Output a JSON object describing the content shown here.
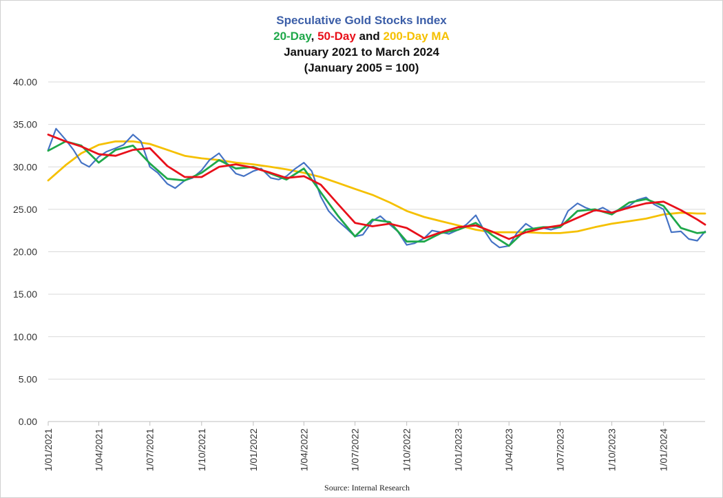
{
  "chart_data": {
    "type": "line",
    "title": "Speculative Gold Stocks Index",
    "subtitle_parts": {
      "ma20": "20-Day",
      "sep1": ", ",
      "ma50": "50-Day",
      "and": " and ",
      "ma200": "200-Day MA"
    },
    "date_range": "January 2021 to March 2024",
    "base_note": "(January 2005 = 100)",
    "source": "Source: Internal Research",
    "xlabel": "",
    "ylabel": "",
    "ylim": [
      0,
      40
    ],
    "yticks": [
      "0.00",
      "5.00",
      "10.00",
      "15.00",
      "20.00",
      "25.00",
      "30.00",
      "35.00",
      "40.00"
    ],
    "xlim": [
      "2021-01-01",
      "2024-03-15"
    ],
    "xticks": [
      "1/01/2021",
      "1/04/2021",
      "1/07/2021",
      "1/10/2021",
      "1/01/2022",
      "1/04/2022",
      "1/07/2022",
      "1/10/2022",
      "1/01/2023",
      "1/04/2023",
      "1/07/2023",
      "1/10/2023",
      "1/01/2024"
    ],
    "grid": true,
    "legend": "none",
    "colors": {
      "index": "#4472c4",
      "ma20": "#1fa84a",
      "ma50": "#e8101a",
      "ma200": "#f5c000",
      "title_blue": "#3b5ea8",
      "grid": "#d9d9d9"
    },
    "series": [
      {
        "key": "index",
        "x": [
          "2021-01-01",
          "2021-01-15",
          "2021-02-01",
          "2021-02-15",
          "2021-03-01",
          "2021-03-15",
          "2021-04-01",
          "2021-04-15",
          "2021-05-01",
          "2021-05-15",
          "2021-06-01",
          "2021-06-15",
          "2021-07-01",
          "2021-07-15",
          "2021-08-01",
          "2021-08-15",
          "2021-09-01",
          "2021-09-15",
          "2021-10-01",
          "2021-10-15",
          "2021-11-01",
          "2021-11-15",
          "2021-12-01",
          "2021-12-15",
          "2022-01-01",
          "2022-01-15",
          "2022-02-01",
          "2022-02-15",
          "2022-03-01",
          "2022-03-15",
          "2022-04-01",
          "2022-04-15",
          "2022-05-01",
          "2022-05-15",
          "2022-06-01",
          "2022-06-15",
          "2022-07-01",
          "2022-07-15",
          "2022-08-01",
          "2022-08-15",
          "2022-09-01",
          "2022-09-15",
          "2022-10-01",
          "2022-10-15",
          "2022-11-01",
          "2022-11-15",
          "2022-12-01",
          "2022-12-15",
          "2023-01-01",
          "2023-01-15",
          "2023-02-01",
          "2023-02-15",
          "2023-03-01",
          "2023-03-15",
          "2023-04-01",
          "2023-04-15",
          "2023-05-01",
          "2023-05-15",
          "2023-06-01",
          "2023-06-15",
          "2023-07-01",
          "2023-07-15",
          "2023-08-01",
          "2023-08-15",
          "2023-09-01",
          "2023-09-15",
          "2023-10-01",
          "2023-10-15",
          "2023-11-01",
          "2023-11-15",
          "2023-12-01",
          "2023-12-15",
          "2024-01-01",
          "2024-01-15",
          "2024-02-01",
          "2024-02-15",
          "2024-03-01",
          "2024-03-15"
        ],
        "y": [
          32.0,
          34.5,
          33.2,
          32.0,
          30.5,
          30.0,
          31.2,
          31.8,
          32.2,
          32.6,
          33.8,
          33.0,
          30.0,
          29.3,
          28.0,
          27.5,
          28.4,
          28.7,
          29.6,
          30.8,
          31.6,
          30.4,
          29.2,
          28.9,
          29.5,
          29.8,
          28.7,
          28.5,
          28.9,
          29.7,
          30.5,
          29.5,
          26.5,
          24.8,
          23.6,
          22.8,
          21.8,
          22.0,
          23.6,
          24.2,
          23.2,
          22.4,
          20.8,
          21.0,
          21.6,
          22.5,
          22.3,
          22.1,
          22.6,
          23.2,
          24.3,
          22.6,
          21.2,
          20.5,
          20.7,
          22.2,
          23.3,
          22.7,
          22.8,
          22.6,
          22.9,
          24.8,
          25.7,
          25.2,
          24.8,
          25.2,
          24.6,
          25.0,
          25.4,
          26.1,
          26.4,
          25.6,
          25.0,
          22.3,
          22.4,
          21.5,
          21.3,
          22.4
        ]
      },
      {
        "key": "ma20",
        "x": [
          "2021-01-01",
          "2021-02-01",
          "2021-03-01",
          "2021-04-01",
          "2021-05-01",
          "2021-06-01",
          "2021-07-01",
          "2021-08-01",
          "2021-09-01",
          "2021-10-01",
          "2021-11-01",
          "2021-12-01",
          "2022-01-01",
          "2022-02-01",
          "2022-03-01",
          "2022-04-01",
          "2022-05-01",
          "2022-06-01",
          "2022-07-01",
          "2022-08-01",
          "2022-09-01",
          "2022-10-01",
          "2022-11-01",
          "2022-12-01",
          "2023-01-01",
          "2023-02-01",
          "2023-03-01",
          "2023-04-01",
          "2023-05-01",
          "2023-06-01",
          "2023-07-01",
          "2023-08-01",
          "2023-09-01",
          "2023-10-01",
          "2023-11-01",
          "2023-12-01",
          "2024-01-01",
          "2024-02-01",
          "2024-03-01",
          "2024-03-15"
        ],
        "y": [
          31.9,
          33.0,
          32.5,
          30.5,
          32.0,
          32.5,
          30.4,
          28.6,
          28.4,
          29.3,
          30.8,
          29.8,
          30.0,
          29.2,
          28.5,
          29.8,
          27.0,
          24.2,
          21.8,
          23.8,
          23.5,
          21.2,
          21.2,
          22.2,
          22.6,
          23.4,
          22.0,
          20.7,
          22.6,
          22.9,
          22.9,
          24.8,
          25.0,
          24.4,
          25.8,
          26.2,
          25.4,
          22.8,
          22.2,
          22.3
        ]
      },
      {
        "key": "ma50",
        "x": [
          "2021-01-01",
          "2021-02-01",
          "2021-03-01",
          "2021-04-01",
          "2021-05-01",
          "2021-06-01",
          "2021-07-01",
          "2021-08-01",
          "2021-09-01",
          "2021-10-01",
          "2021-11-01",
          "2021-12-01",
          "2022-01-01",
          "2022-02-01",
          "2022-03-01",
          "2022-04-01",
          "2022-05-01",
          "2022-06-01",
          "2022-07-01",
          "2022-08-01",
          "2022-09-01",
          "2022-10-01",
          "2022-11-01",
          "2022-12-01",
          "2023-01-01",
          "2023-02-01",
          "2023-03-01",
          "2023-04-01",
          "2023-05-01",
          "2023-06-01",
          "2023-07-01",
          "2023-08-01",
          "2023-09-01",
          "2023-10-01",
          "2023-11-01",
          "2023-12-01",
          "2024-01-01",
          "2024-02-01",
          "2024-03-01",
          "2024-03-15"
        ],
        "y": [
          33.8,
          33.0,
          32.4,
          31.5,
          31.3,
          32.0,
          32.2,
          30.1,
          28.8,
          28.8,
          30.0,
          30.3,
          29.9,
          29.3,
          28.7,
          28.9,
          27.9,
          25.6,
          23.4,
          23.0,
          23.3,
          22.8,
          21.6,
          22.3,
          22.9,
          23.1,
          22.4,
          21.5,
          22.3,
          22.8,
          23.1,
          24.0,
          24.9,
          24.6,
          25.2,
          25.7,
          25.9,
          24.9,
          23.8,
          23.2
        ]
      },
      {
        "key": "ma200",
        "x": [
          "2021-01-01",
          "2021-02-01",
          "2021-03-01",
          "2021-04-01",
          "2021-05-01",
          "2021-06-01",
          "2021-07-01",
          "2021-08-01",
          "2021-09-01",
          "2021-10-01",
          "2021-11-01",
          "2021-12-01",
          "2022-01-01",
          "2022-02-01",
          "2022-03-01",
          "2022-04-01",
          "2022-05-01",
          "2022-06-01",
          "2022-07-01",
          "2022-08-01",
          "2022-09-01",
          "2022-10-01",
          "2022-11-01",
          "2022-12-01",
          "2023-01-01",
          "2023-02-01",
          "2023-03-01",
          "2023-04-01",
          "2023-05-01",
          "2023-06-01",
          "2023-07-01",
          "2023-08-01",
          "2023-09-01",
          "2023-10-01",
          "2023-11-01",
          "2023-12-01",
          "2024-01-01",
          "2024-02-01",
          "2024-03-01",
          "2024-03-15"
        ],
        "y": [
          28.4,
          30.2,
          31.6,
          32.6,
          33.0,
          33.0,
          32.7,
          32.0,
          31.3,
          31.0,
          30.8,
          30.5,
          30.3,
          30.0,
          29.7,
          29.3,
          28.8,
          28.1,
          27.4,
          26.7,
          25.8,
          24.8,
          24.1,
          23.6,
          23.1,
          22.6,
          22.3,
          22.3,
          22.3,
          22.2,
          22.2,
          22.4,
          22.9,
          23.3,
          23.6,
          23.9,
          24.4,
          24.6,
          24.5,
          24.5
        ]
      }
    ]
  }
}
